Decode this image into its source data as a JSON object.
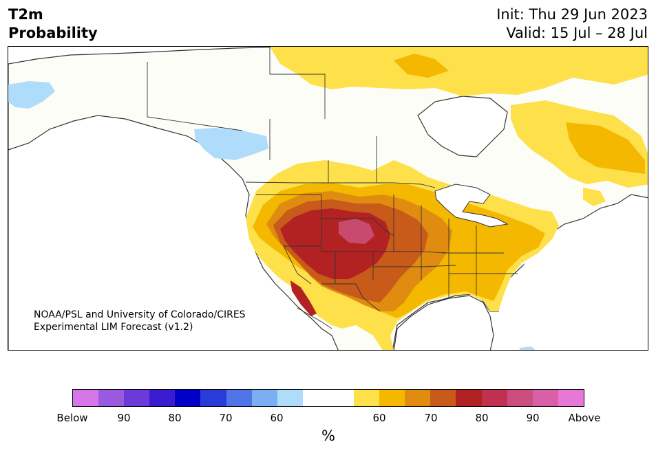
{
  "title": {
    "variable": "T2m",
    "subtitle": "Probability",
    "init": "Init: Thu 29 Jun 2023",
    "valid": "Valid: 15 Jul – 28 Jul"
  },
  "credit": {
    "line1": "NOAA/PSL and University of Colorado/CIRES",
    "line2": "Experimental LIM Forecast (v1.2)"
  },
  "colorbar": {
    "colors": [
      "#d676e8",
      "#9b59e0",
      "#6b3ad8",
      "#3a1bd0",
      "#0000c8",
      "#2a3cd8",
      "#5075e6",
      "#7ab0f2",
      "#aedcfa",
      "#ffffff",
      "#ffffff",
      "#fde04a",
      "#f4b800",
      "#e08c10",
      "#c85a1a",
      "#b22222",
      "#c03050",
      "#cc4e7e",
      "#d860a8",
      "#e878d8"
    ],
    "labels": [
      "Below",
      "90",
      "80",
      "70",
      "60",
      "60",
      "70",
      "80",
      "90",
      "Above"
    ],
    "unit": "%"
  },
  "map_layers": {
    "land_color": "#fdfdf8",
    "coast_color": "#333333"
  }
}
